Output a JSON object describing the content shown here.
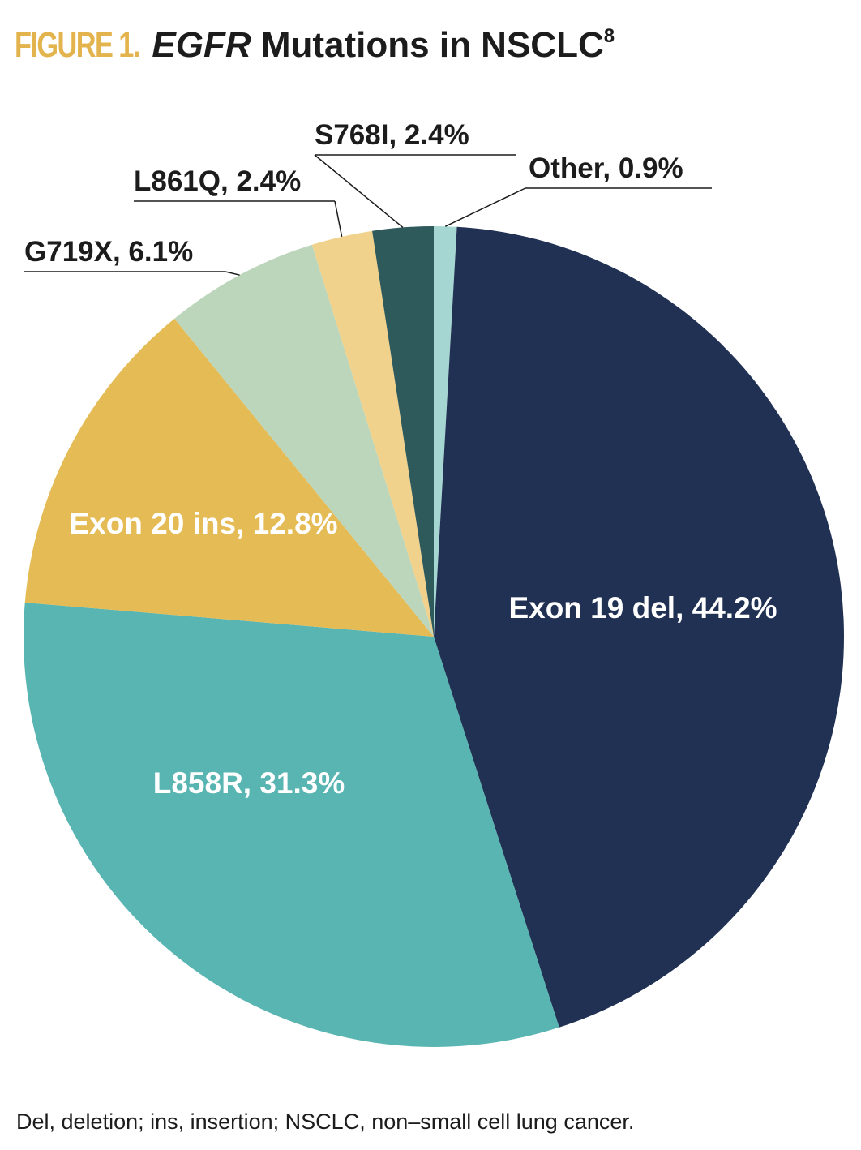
{
  "title": {
    "figure_label": "FIGURE 1.",
    "gene": "EGFR",
    "text": "Mutations in NSCLC",
    "superscript": "8"
  },
  "chart_data": {
    "type": "pie",
    "title": "EGFR Mutations in NSCLC",
    "start_angle_deg": 0,
    "direction": "clockwise",
    "slices": [
      {
        "label": "Other",
        "value": 0.9,
        "display": "Other, 0.9%",
        "color": "#a5d6d1",
        "label_mode": "callout"
      },
      {
        "label": "Exon 19 del",
        "value": 44.2,
        "display": "Exon 19 del, 44.2%",
        "color": "#213153",
        "label_mode": "inside"
      },
      {
        "label": "L858R",
        "value": 31.3,
        "display": "L858R, 31.3%",
        "color": "#58b5b1",
        "label_mode": "inside"
      },
      {
        "label": "Exon 20 ins",
        "value": 12.8,
        "display": "Exon 20 ins, 12.8%",
        "color": "#e5bb56",
        "label_mode": "inside"
      },
      {
        "label": "G719X",
        "value": 6.1,
        "display": "G719X, 6.1%",
        "color": "#bbd6bb",
        "label_mode": "callout"
      },
      {
        "label": "L861Q",
        "value": 2.4,
        "display": "L861Q, 2.4%",
        "color": "#f0d28d",
        "label_mode": "callout"
      },
      {
        "label": "S768I",
        "value": 2.4,
        "display": "S768I, 2.4%",
        "color": "#2f5a5c",
        "label_mode": "callout"
      }
    ]
  },
  "footnote": "Del, deletion; ins, insertion; NSCLC, non–small cell lung cancer."
}
